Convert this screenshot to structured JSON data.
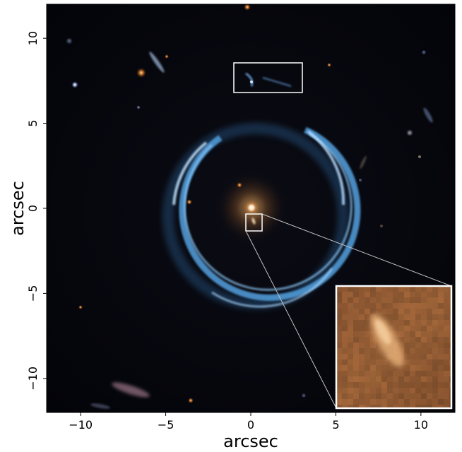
{
  "figure": {
    "xlabel": "arcsec",
    "ylabel": "arcsec",
    "x_ticks": [
      "−10",
      "−5",
      "0",
      "5",
      "10"
    ],
    "y_ticks": [
      "10",
      "5",
      "0",
      "−5",
      "−10"
    ],
    "x_tick_values": [
      -10,
      -5,
      0,
      5,
      10
    ],
    "y_tick_values": [
      10,
      5,
      0,
      -5,
      -10
    ],
    "xlim": [
      -12,
      12
    ],
    "ylim": [
      -12,
      12
    ],
    "colors": {
      "sky": "#06070d",
      "ring": "#5aa4dc",
      "ring_core": "#b8dcff",
      "lens_galaxy": "#ffb060",
      "inset_bg": "#9a6236",
      "inset_streak": "#f2c48a",
      "highlight_box": "#ffffff",
      "connector": "#b4b4b4"
    },
    "highlight_boxes": [
      "upper-highlight-box",
      "center-highlight-box"
    ],
    "inset": {
      "name": "zoom-inset",
      "xrange": [
        -0.3,
        0.7
      ],
      "yrange": [
        -1.3,
        -0.2
      ]
    }
  }
}
